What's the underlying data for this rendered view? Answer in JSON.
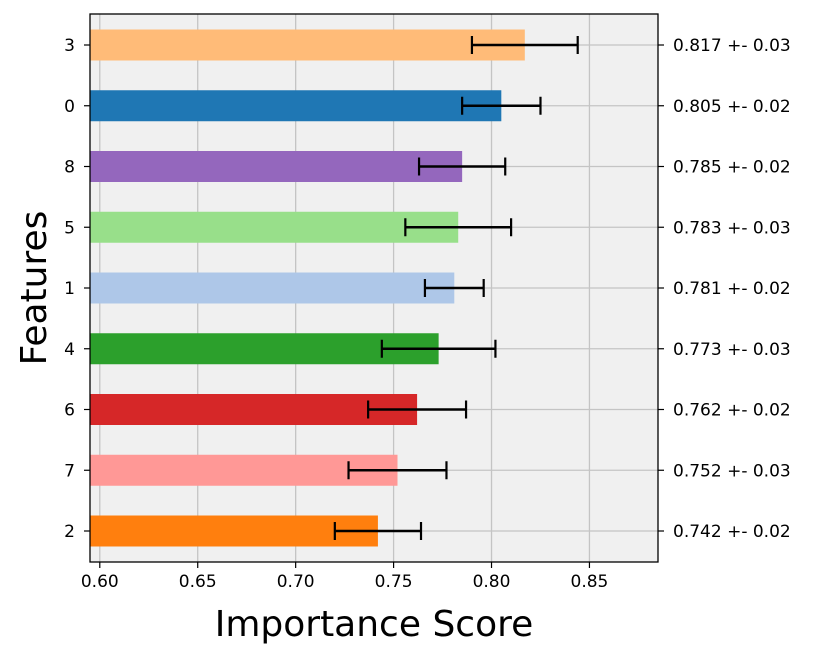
{
  "chart_data": {
    "type": "bar",
    "orientation": "horizontal",
    "xlabel": "Importance Score",
    "ylabel": "Features",
    "xlim": [
      0.595,
      0.885
    ],
    "xticks": [
      0.6,
      0.65,
      0.7,
      0.75,
      0.8,
      0.85
    ],
    "xtick_labels": [
      "0.60",
      "0.65",
      "0.70",
      "0.75",
      "0.80",
      "0.85"
    ],
    "grid": true,
    "background": "#f0f0f0",
    "bars": [
      {
        "feature": "3",
        "value": 0.817,
        "error": 0.027,
        "color": "#ffbb78",
        "label": "0.817 +- 0.03"
      },
      {
        "feature": "0",
        "value": 0.805,
        "error": 0.02,
        "color": "#1f77b4",
        "label": "0.805 +- 0.02"
      },
      {
        "feature": "8",
        "value": 0.785,
        "error": 0.022,
        "color": "#9467bd",
        "label": "0.785 +- 0.02"
      },
      {
        "feature": "5",
        "value": 0.783,
        "error": 0.027,
        "color": "#98df8a",
        "label": "0.783 +- 0.03"
      },
      {
        "feature": "1",
        "value": 0.781,
        "error": 0.015,
        "color": "#aec7e8",
        "label": "0.781 +- 0.02"
      },
      {
        "feature": "4",
        "value": 0.773,
        "error": 0.029,
        "color": "#2ca02c",
        "label": "0.773 +- 0.03"
      },
      {
        "feature": "6",
        "value": 0.762,
        "error": 0.025,
        "color": "#d62728",
        "label": "0.762 +- 0.02"
      },
      {
        "feature": "7",
        "value": 0.752,
        "error": 0.025,
        "color": "#ff9896",
        "label": "0.752 +- 0.03"
      },
      {
        "feature": "2",
        "value": 0.742,
        "error": 0.022,
        "color": "#ff7f0e",
        "label": "0.742 +- 0.02"
      }
    ]
  }
}
